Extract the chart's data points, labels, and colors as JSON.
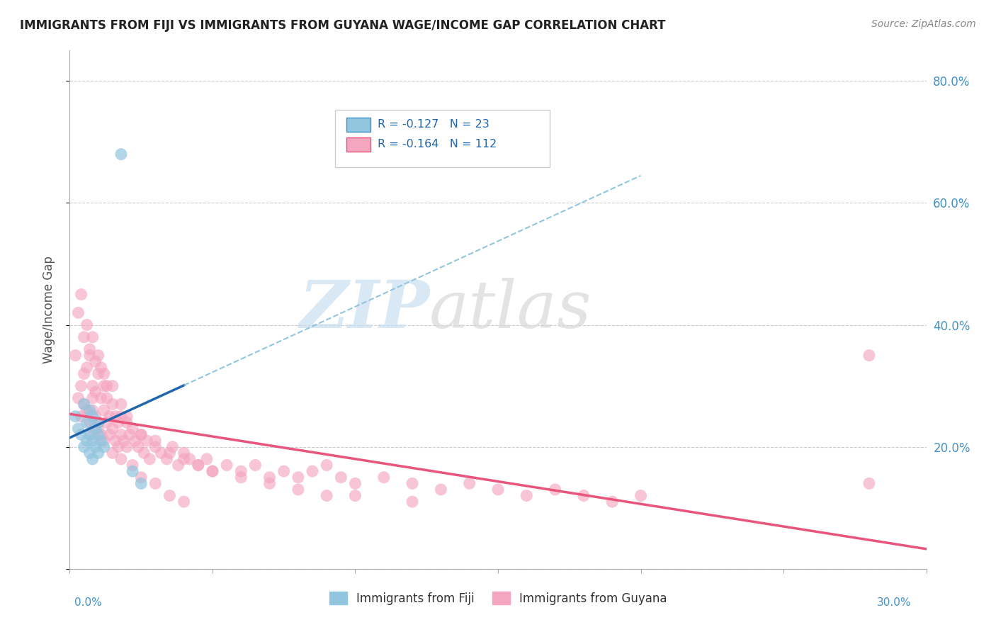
{
  "title": "IMMIGRANTS FROM FIJI VS IMMIGRANTS FROM GUYANA WAGE/INCOME GAP CORRELATION CHART",
  "source": "Source: ZipAtlas.com",
  "ylabel": "Wage/Income Gap",
  "xmin": 0.0,
  "xmax": 0.3,
  "ymin": 0.0,
  "ymax": 0.85,
  "yticks": [
    0.0,
    0.2,
    0.4,
    0.6,
    0.8
  ],
  "ytick_labels": [
    "",
    "20.0%",
    "40.0%",
    "60.0%",
    "80.0%"
  ],
  "xtick_positions": [
    0.0,
    0.05,
    0.1,
    0.15,
    0.2,
    0.25,
    0.3
  ],
  "fiji_R": -0.127,
  "fiji_N": 23,
  "guyana_R": -0.164,
  "guyana_N": 112,
  "fiji_color": "#92c5de",
  "guyana_color": "#f4a6c0",
  "fiji_label": "Immigrants from Fiji",
  "guyana_label": "Immigrants from Guyana",
  "fiji_trend_color": "#2166ac",
  "guyana_trend_color": "#e8547a",
  "fiji_dash_color": "#92c5de",
  "background_color": "#ffffff",
  "grid_color": "#cccccc",
  "watermark_zip": "ZIP",
  "watermark_atlas": "atlas",
  "fiji_scatter_x": [
    0.002,
    0.003,
    0.004,
    0.005,
    0.005,
    0.006,
    0.006,
    0.007,
    0.007,
    0.007,
    0.008,
    0.008,
    0.008,
    0.009,
    0.009,
    0.01,
    0.01,
    0.01,
    0.011,
    0.012,
    0.018,
    0.022,
    0.025
  ],
  "fiji_scatter_y": [
    0.25,
    0.23,
    0.22,
    0.27,
    0.2,
    0.24,
    0.21,
    0.26,
    0.22,
    0.19,
    0.25,
    0.21,
    0.18,
    0.23,
    0.2,
    0.24,
    0.22,
    0.19,
    0.21,
    0.2,
    0.68,
    0.16,
    0.14
  ],
  "guyana_scatter_x": [
    0.002,
    0.003,
    0.004,
    0.004,
    0.005,
    0.005,
    0.006,
    0.006,
    0.007,
    0.007,
    0.008,
    0.008,
    0.008,
    0.009,
    0.009,
    0.01,
    0.01,
    0.011,
    0.011,
    0.012,
    0.012,
    0.013,
    0.013,
    0.014,
    0.014,
    0.015,
    0.015,
    0.016,
    0.016,
    0.017,
    0.017,
    0.018,
    0.018,
    0.019,
    0.02,
    0.02,
    0.021,
    0.022,
    0.023,
    0.024,
    0.025,
    0.026,
    0.027,
    0.028,
    0.03,
    0.032,
    0.034,
    0.036,
    0.038,
    0.04,
    0.042,
    0.045,
    0.048,
    0.05,
    0.055,
    0.06,
    0.065,
    0.07,
    0.075,
    0.08,
    0.085,
    0.09,
    0.095,
    0.1,
    0.11,
    0.12,
    0.13,
    0.14,
    0.15,
    0.16,
    0.17,
    0.18,
    0.19,
    0.2,
    0.003,
    0.005,
    0.007,
    0.009,
    0.011,
    0.013,
    0.004,
    0.006,
    0.008,
    0.01,
    0.012,
    0.015,
    0.018,
    0.02,
    0.025,
    0.03,
    0.035,
    0.04,
    0.045,
    0.05,
    0.06,
    0.07,
    0.08,
    0.09,
    0.1,
    0.12,
    0.008,
    0.01,
    0.012,
    0.015,
    0.018,
    0.022,
    0.025,
    0.03,
    0.035,
    0.04,
    0.28,
    0.28
  ],
  "guyana_scatter_y": [
    0.35,
    0.28,
    0.3,
    0.25,
    0.32,
    0.27,
    0.33,
    0.26,
    0.35,
    0.24,
    0.3,
    0.28,
    0.22,
    0.29,
    0.25,
    0.32,
    0.24,
    0.28,
    0.22,
    0.26,
    0.3,
    0.24,
    0.28,
    0.25,
    0.22,
    0.27,
    0.23,
    0.25,
    0.21,
    0.24,
    0.2,
    0.22,
    0.25,
    0.21,
    0.24,
    0.2,
    0.22,
    0.23,
    0.21,
    0.2,
    0.22,
    0.19,
    0.21,
    0.18,
    0.2,
    0.19,
    0.18,
    0.2,
    0.17,
    0.19,
    0.18,
    0.17,
    0.18,
    0.16,
    0.17,
    0.16,
    0.17,
    0.15,
    0.16,
    0.15,
    0.16,
    0.17,
    0.15,
    0.14,
    0.15,
    0.14,
    0.13,
    0.14,
    0.13,
    0.12,
    0.13,
    0.12,
    0.11,
    0.12,
    0.42,
    0.38,
    0.36,
    0.34,
    0.33,
    0.3,
    0.45,
    0.4,
    0.38,
    0.35,
    0.32,
    0.3,
    0.27,
    0.25,
    0.22,
    0.21,
    0.19,
    0.18,
    0.17,
    0.16,
    0.15,
    0.14,
    0.13,
    0.12,
    0.12,
    0.11,
    0.26,
    0.23,
    0.21,
    0.19,
    0.18,
    0.17,
    0.15,
    0.14,
    0.12,
    0.11,
    0.35,
    0.14
  ]
}
